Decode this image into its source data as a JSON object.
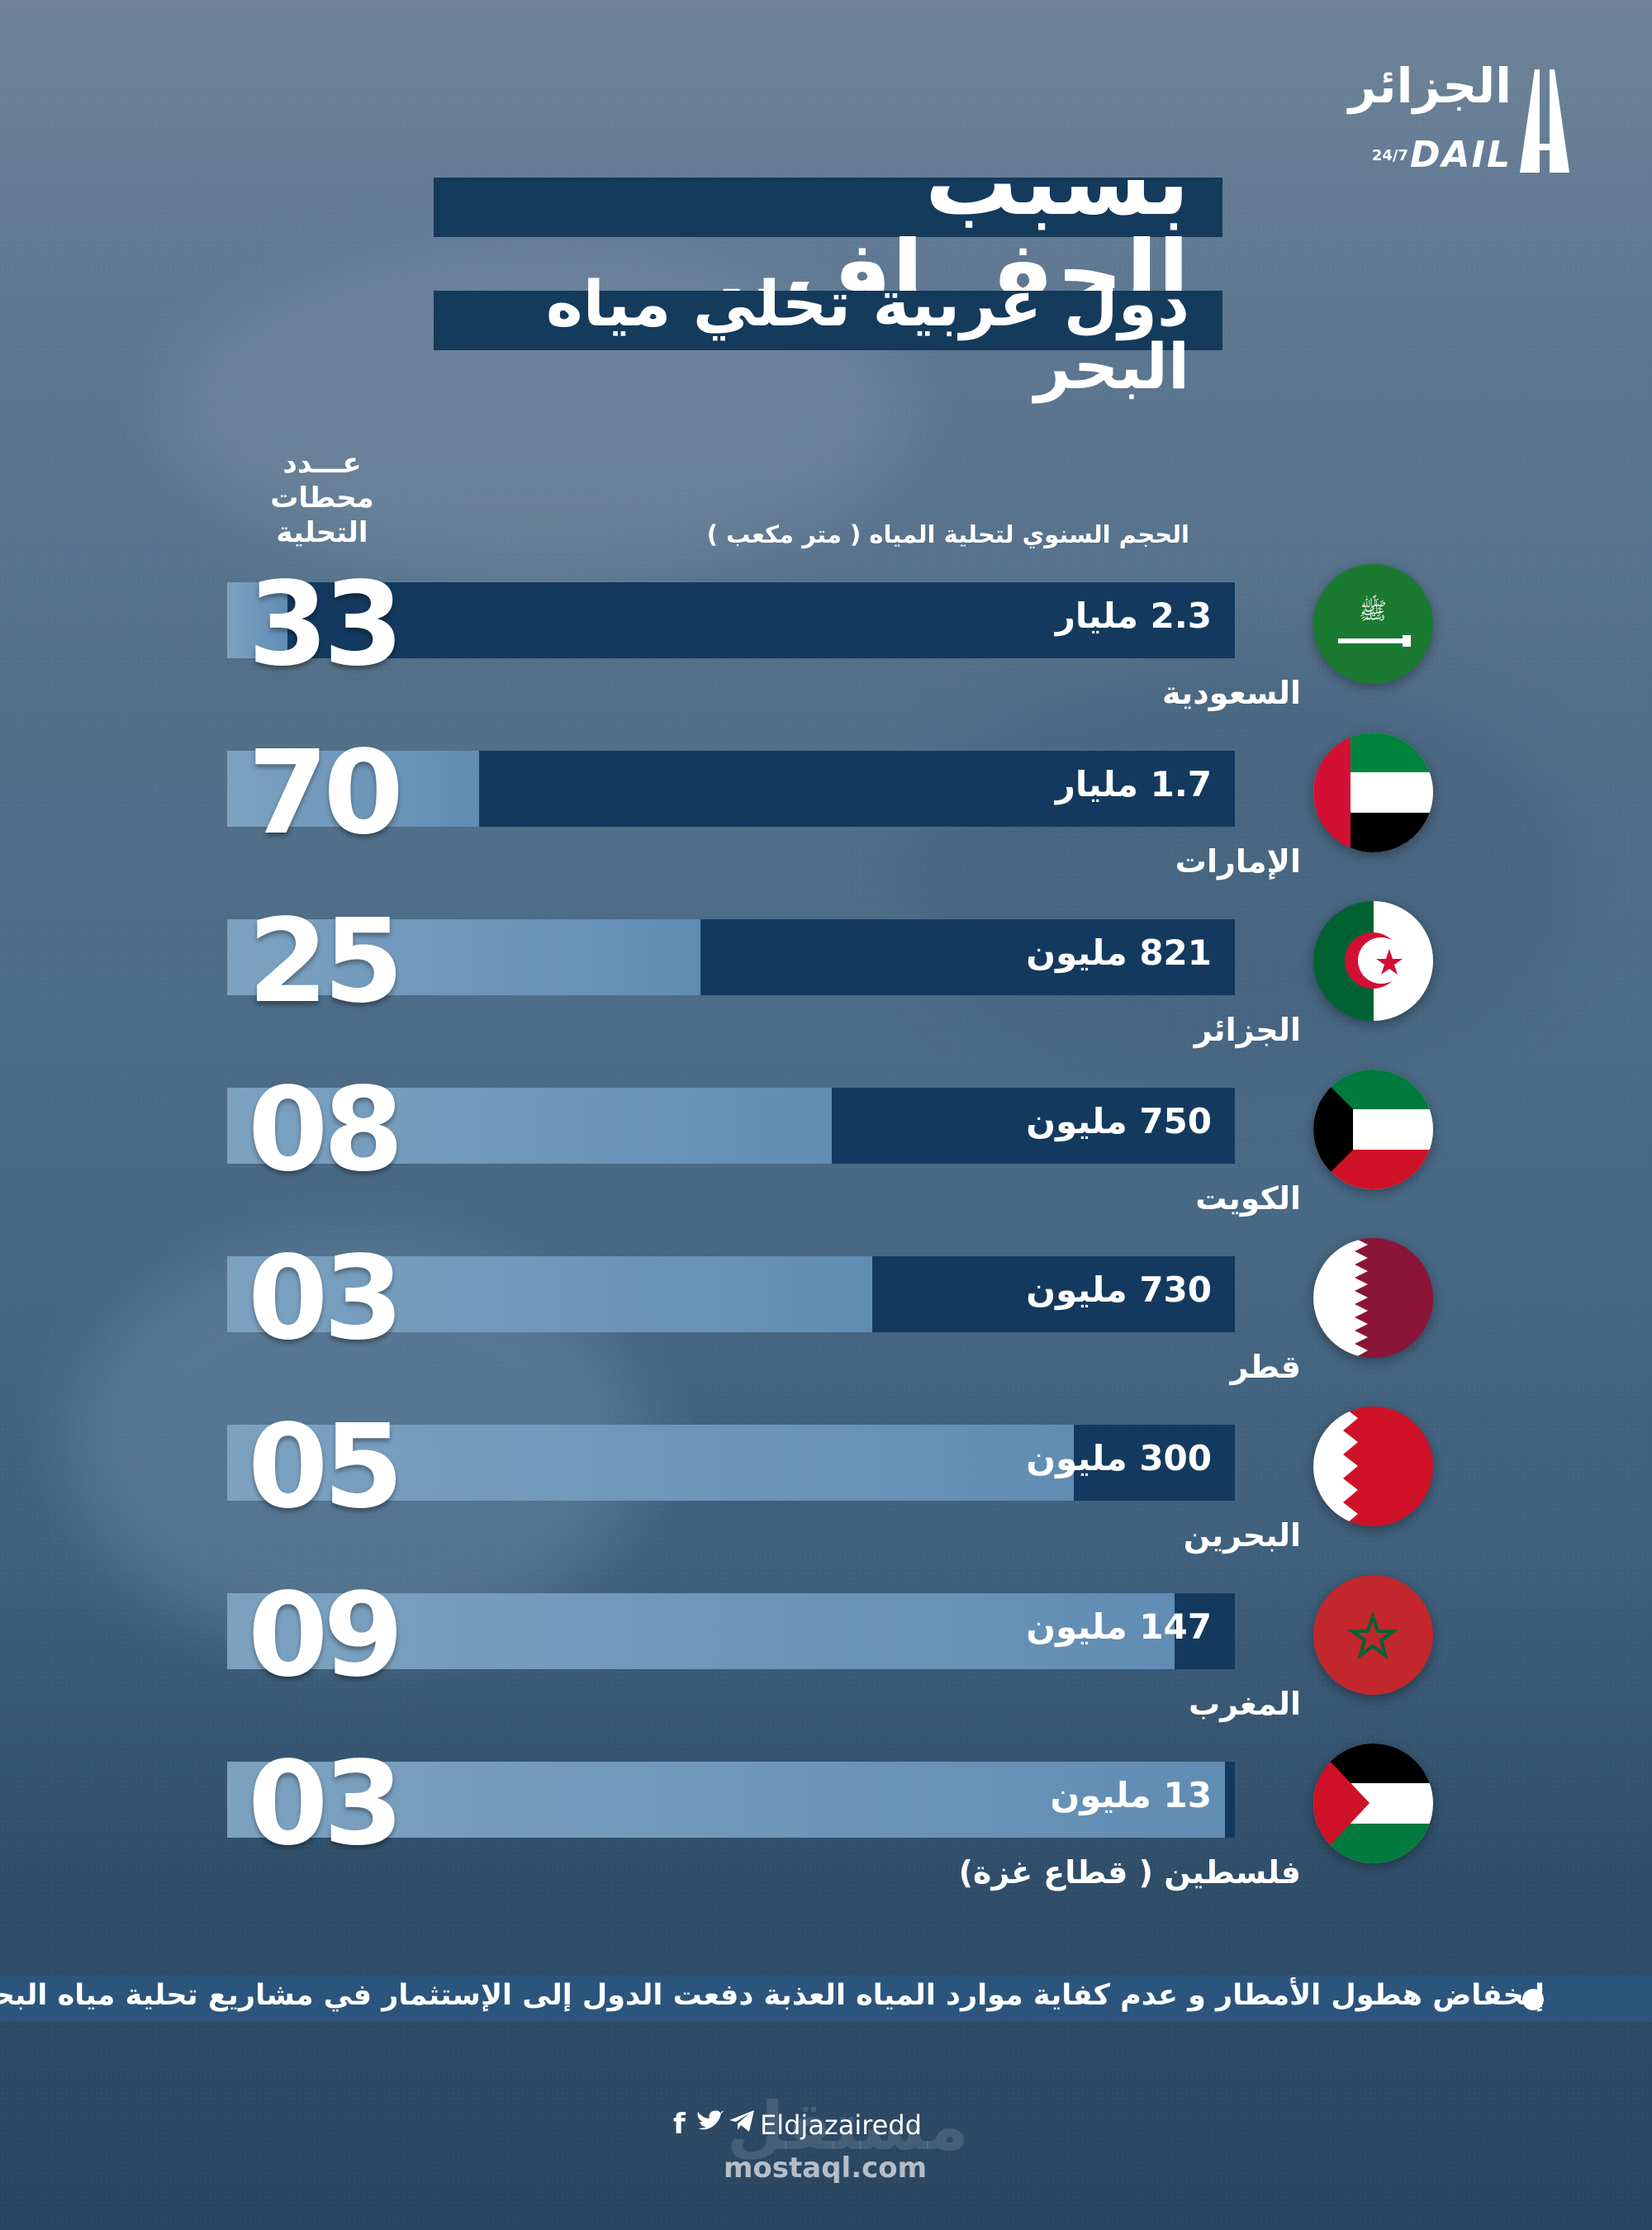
{
  "brand": {
    "logo_ar": "الجزائر",
    "logo_en": "DAIL",
    "logo_tag": "24/7"
  },
  "header": {
    "title": "بسبب الجفــاف..",
    "subtitle": "دول عربية تحلي مياه البحر"
  },
  "columns": {
    "count_label": "عـــدد محطات التحلية",
    "volume_label": "الحجم السنوي لتحلية المياه ( متر مكعب )"
  },
  "chart_data": {
    "type": "bar",
    "title": "بسبب الجفــاف..",
    "subtitle": "دول عربية تحلي مياه البحر",
    "value_label": "الحجم السنوي لتحلية المياه ( متر مكعب )",
    "count_label": "عـــدد محطات التحلية",
    "unit": "متر مكعب",
    "rows": [
      {
        "country": "السعودية",
        "volume_label": "2.3 مليار",
        "volume": 2300000000,
        "stations": "33",
        "flag": "saudi-arabia"
      },
      {
        "country": "الإمارات",
        "volume_label": "1.7 مليار",
        "volume": 1700000000,
        "stations": "70",
        "flag": "uae"
      },
      {
        "country": "الجزائر",
        "volume_label": "821 مليون",
        "volume": 821000000,
        "stations": "25",
        "flag": "algeria"
      },
      {
        "country": "الكويت",
        "volume_label": "750 مليون",
        "volume": 750000000,
        "stations": "08",
        "flag": "kuwait"
      },
      {
        "country": "قطر",
        "volume_label": "730 مليون",
        "volume": 730000000,
        "stations": "03",
        "flag": "qatar"
      },
      {
        "country": "البحرين",
        "volume_label": "300 مليون",
        "volume": 300000000,
        "stations": "05",
        "flag": "bahrain"
      },
      {
        "country": "المغرب",
        "volume_label": "147 مليون",
        "volume": 147000000,
        "stations": "09",
        "flag": "morocco"
      },
      {
        "country": "فلسطين ( قطاع غزة)",
        "volume_label": "13 مليون",
        "volume": 13000000,
        "stations": "03",
        "flag": "palestine"
      }
    ],
    "dark_fraction": [
      0.94,
      0.75,
      0.53,
      0.4,
      0.36,
      0.16,
      0.06,
      0.01
    ]
  },
  "footnote": "إنخفاض هطول الأمطار و عدم كفاية موارد المياه العذبة دفعت الدول إلى الإستثمار في مشاريع تحلية مياه البحر.",
  "social": {
    "handle": "Eldjazairedd",
    "icons": [
      "facebook-icon",
      "twitter-icon",
      "telegram-icon"
    ]
  },
  "watermark": {
    "text": "mostaql.com",
    "mark": "مستقل"
  },
  "colors": {
    "bar_dark": "#133a5e",
    "bar_light": "#8fb4d2",
    "title_box": "#143a5c",
    "note_bar": "#2b5680"
  }
}
